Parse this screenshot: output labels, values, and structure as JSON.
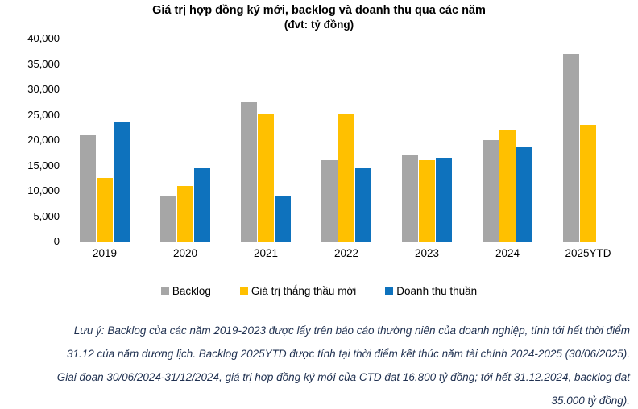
{
  "title": "Giá trị hợp đồng ký mới, backlog và doanh thu qua các năm",
  "subtitle": "(đvt: tỷ đồng)",
  "chart_data": {
    "type": "bar",
    "title": "Giá trị hợp đồng ký mới, backlog và doanh thu qua các năm",
    "subtitle": "(đvt: tỷ đồng)",
    "unit": "tỷ đồng",
    "categories": [
      "2019",
      "2020",
      "2021",
      "2022",
      "2023",
      "2024",
      "2025YTD"
    ],
    "series": [
      {
        "name": "Backlog",
        "color": "#a6a6a6",
        "values": [
          21000,
          9000,
          27500,
          16000,
          17000,
          20000,
          37000
        ]
      },
      {
        "name": "Giá trị thắng thầu mới",
        "color": "#ffc000",
        "values": [
          12500,
          11000,
          25000,
          25000,
          16000,
          22000,
          23000
        ]
      },
      {
        "name": "Doanh thu thuần",
        "color": "#0e72bd",
        "values": [
          23700,
          14500,
          9000,
          14500,
          16500,
          18700,
          null
        ]
      }
    ],
    "ylim": [
      0,
      40000
    ],
    "ytick_step": 5000,
    "ytick_labels": [
      "0",
      "5,000",
      "10,000",
      "15,000",
      "20,000",
      "25,000",
      "30,000",
      "35,000",
      "40,000"
    ],
    "grid": false,
    "legend_position": "bottom",
    "axis_line_color": "#d9d9d9"
  },
  "footnote": {
    "color": "#1f3050",
    "lines": [
      "Lưu ý: Backlog của các năm 2019-2023 được lấy trên báo cáo thường niên của doanh nghiệp, tính tới hết thời điểm",
      "31.12 của năm dương lịch. Backlog 2025YTD được tính tại thời điểm kết thúc năm tài chính 2024-2025 (30/06/2025).",
      "Giai đoạn 30/06/2024-31/12/2024, giá trị hợp đồng ký mới của CTD đạt 16.800 tỷ đồng; tới hết 31.12.2024, backlog đạt",
      "35.000 tỷ đồng)."
    ]
  }
}
